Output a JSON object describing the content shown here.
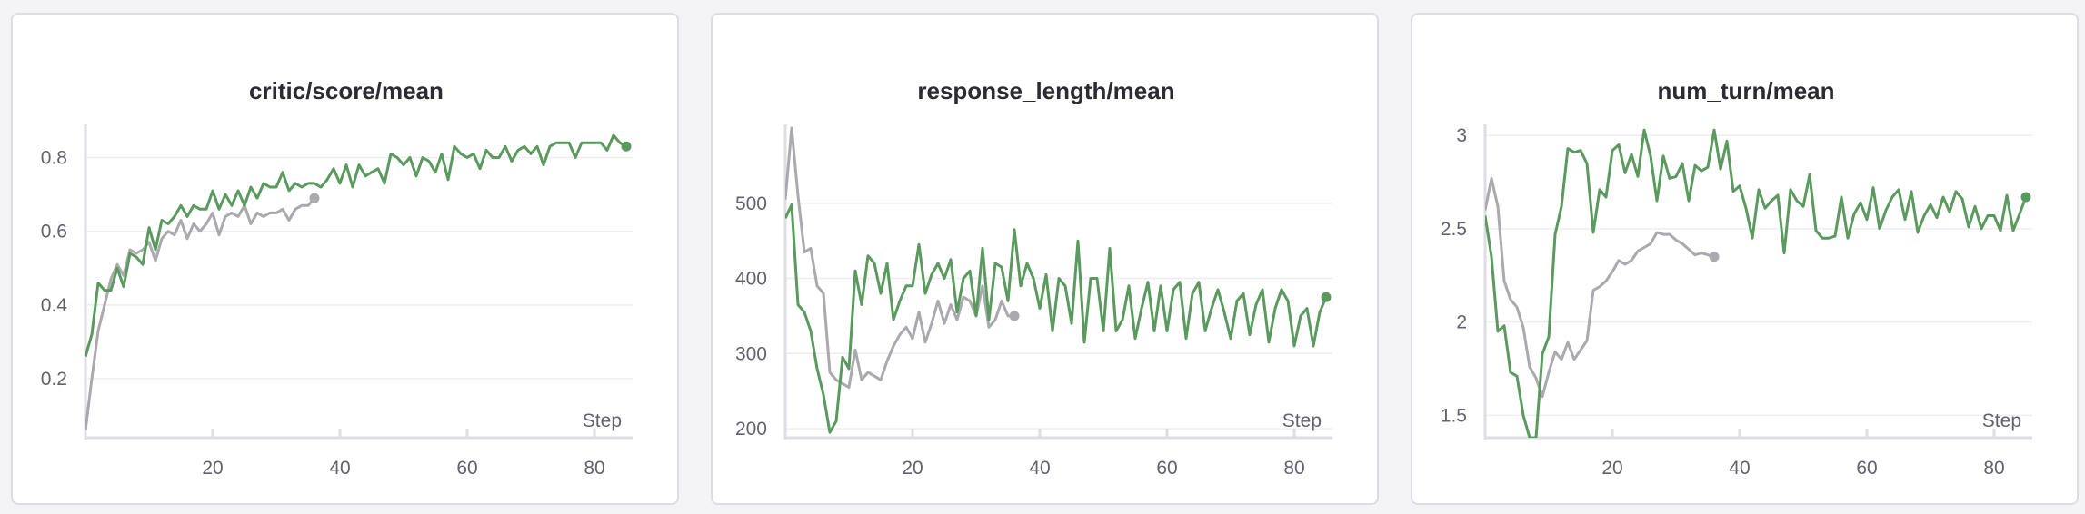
{
  "colors": {
    "run_green": "#5a9a5e",
    "run_gray": "#a9a9ae",
    "grid": "#eeeef2",
    "axis": "#dddde3"
  },
  "chart_data": [
    {
      "type": "line",
      "title": "critic/score/mean",
      "xlabel": "Step",
      "xlim": [
        0,
        86
      ],
      "ylim": [
        0.04,
        0.88
      ],
      "xticks": [
        20,
        40,
        60,
        80
      ],
      "yticks": [
        0.2,
        0.4,
        0.6,
        0.8
      ],
      "ytick_labels": [
        "0.2",
        "0.4",
        "0.6",
        "0.8"
      ],
      "series": [
        {
          "color": "#5a9a5e",
          "end_marker": true,
          "x": [
            0,
            1,
            2,
            3,
            4,
            5,
            6,
            7,
            8,
            9,
            10,
            11,
            12,
            13,
            14,
            15,
            16,
            17,
            18,
            19,
            20,
            21,
            22,
            23,
            24,
            25,
            26,
            27,
            28,
            29,
            30,
            31,
            32,
            33,
            34,
            35,
            36,
            37,
            38,
            39,
            40,
            41,
            42,
            43,
            44,
            45,
            46,
            47,
            48,
            49,
            50,
            51,
            52,
            53,
            54,
            55,
            56,
            57,
            58,
            59,
            60,
            61,
            62,
            63,
            64,
            65,
            66,
            67,
            68,
            69,
            70,
            71,
            72,
            73,
            74,
            75,
            76,
            77,
            78,
            79,
            80,
            81,
            82,
            83,
            84,
            85
          ],
          "y": [
            0.26,
            0.32,
            0.46,
            0.44,
            0.44,
            0.5,
            0.45,
            0.54,
            0.53,
            0.51,
            0.61,
            0.55,
            0.63,
            0.62,
            0.64,
            0.67,
            0.64,
            0.67,
            0.66,
            0.66,
            0.71,
            0.66,
            0.7,
            0.67,
            0.71,
            0.67,
            0.72,
            0.69,
            0.73,
            0.72,
            0.72,
            0.76,
            0.71,
            0.73,
            0.72,
            0.73,
            0.73,
            0.72,
            0.74,
            0.77,
            0.73,
            0.78,
            0.72,
            0.78,
            0.75,
            0.76,
            0.77,
            0.73,
            0.81,
            0.8,
            0.78,
            0.8,
            0.75,
            0.8,
            0.79,
            0.76,
            0.81,
            0.74,
            0.83,
            0.81,
            0.8,
            0.81,
            0.77,
            0.82,
            0.8,
            0.8,
            0.83,
            0.79,
            0.82,
            0.83,
            0.81,
            0.83,
            0.78,
            0.83,
            0.84,
            0.84,
            0.84,
            0.8,
            0.84,
            0.84,
            0.84,
            0.84,
            0.82,
            0.86,
            0.84,
            0.83
          ]
        },
        {
          "color": "#a9a9ae",
          "end_marker": true,
          "x": [
            0,
            1,
            2,
            3,
            4,
            5,
            6,
            7,
            8,
            9,
            10,
            11,
            12,
            13,
            14,
            15,
            16,
            17,
            18,
            19,
            20,
            21,
            22,
            23,
            24,
            25,
            26,
            27,
            28,
            29,
            30,
            31,
            32,
            33,
            34,
            35,
            36
          ],
          "y": [
            0.06,
            0.2,
            0.33,
            0.4,
            0.47,
            0.51,
            0.48,
            0.55,
            0.54,
            0.55,
            0.57,
            0.52,
            0.58,
            0.6,
            0.59,
            0.63,
            0.58,
            0.62,
            0.6,
            0.62,
            0.65,
            0.59,
            0.64,
            0.65,
            0.64,
            0.67,
            0.62,
            0.65,
            0.64,
            0.65,
            0.65,
            0.66,
            0.63,
            0.66,
            0.67,
            0.67,
            0.69
          ]
        }
      ]
    },
    {
      "type": "line",
      "title": "response_length/mean",
      "xlabel": "Step",
      "xlim": [
        0,
        86
      ],
      "ylim": [
        188,
        600
      ],
      "xticks": [
        20,
        40,
        60,
        80
      ],
      "yticks": [
        200,
        300,
        400,
        500
      ],
      "ytick_labels": [
        "200",
        "300",
        "400",
        "500"
      ],
      "series": [
        {
          "color": "#5a9a5e",
          "end_marker": true,
          "x": [
            0,
            1,
            2,
            3,
            4,
            5,
            6,
            7,
            8,
            9,
            10,
            11,
            12,
            13,
            14,
            15,
            16,
            17,
            18,
            19,
            20,
            21,
            22,
            23,
            24,
            25,
            26,
            27,
            28,
            29,
            30,
            31,
            32,
            33,
            34,
            35,
            36,
            37,
            38,
            39,
            40,
            41,
            42,
            43,
            44,
            45,
            46,
            47,
            48,
            49,
            50,
            51,
            52,
            53,
            54,
            55,
            56,
            57,
            58,
            59,
            60,
            61,
            62,
            63,
            64,
            65,
            66,
            67,
            68,
            69,
            70,
            71,
            72,
            73,
            74,
            75,
            76,
            77,
            78,
            79,
            80,
            81,
            82,
            83,
            84,
            85
          ],
          "y": [
            480,
            498,
            365,
            355,
            330,
            280,
            245,
            195,
            210,
            295,
            280,
            410,
            365,
            430,
            420,
            380,
            420,
            345,
            370,
            390,
            390,
            445,
            380,
            405,
            420,
            400,
            425,
            355,
            400,
            410,
            350,
            440,
            345,
            420,
            415,
            370,
            465,
            390,
            420,
            400,
            360,
            405,
            330,
            400,
            390,
            340,
            450,
            315,
            400,
            400,
            330,
            440,
            330,
            345,
            390,
            320,
            360,
            395,
            330,
            390,
            330,
            385,
            395,
            320,
            380,
            395,
            330,
            360,
            385,
            355,
            320,
            370,
            380,
            325,
            365,
            385,
            315,
            360,
            385,
            370,
            310,
            350,
            360,
            310,
            355,
            375
          ]
        },
        {
          "color": "#a9a9ae",
          "end_marker": true,
          "x": [
            0,
            1,
            2,
            3,
            4,
            5,
            6,
            7,
            8,
            9,
            10,
            11,
            12,
            13,
            14,
            15,
            16,
            17,
            18,
            19,
            20,
            21,
            22,
            23,
            24,
            25,
            26,
            27,
            28,
            29,
            30,
            31,
            32,
            33,
            34,
            35,
            36
          ],
          "y": [
            505,
            600,
            510,
            435,
            440,
            390,
            380,
            275,
            265,
            260,
            255,
            305,
            265,
            275,
            270,
            265,
            290,
            310,
            325,
            335,
            320,
            355,
            315,
            340,
            370,
            340,
            365,
            345,
            375,
            370,
            350,
            390,
            335,
            345,
            370,
            350,
            350
          ]
        }
      ]
    },
    {
      "type": "line",
      "title": "num_turn/mean",
      "xlabel": "Step",
      "xlim": [
        0,
        86
      ],
      "ylim": [
        1.38,
        3.04
      ],
      "xticks": [
        20,
        40,
        60,
        80
      ],
      "yticks": [
        1.5,
        2,
        2.5,
        3
      ],
      "ytick_labels": [
        "1.5",
        "2",
        "2.5",
        "3"
      ],
      "series": [
        {
          "color": "#5a9a5e",
          "end_marker": true,
          "x": [
            0,
            1,
            2,
            3,
            4,
            5,
            6,
            7,
            8,
            9,
            10,
            11,
            12,
            13,
            14,
            15,
            16,
            17,
            18,
            19,
            20,
            21,
            22,
            23,
            24,
            25,
            26,
            27,
            28,
            29,
            30,
            31,
            32,
            33,
            34,
            35,
            36,
            37,
            38,
            39,
            40,
            41,
            42,
            43,
            44,
            45,
            46,
            47,
            48,
            49,
            50,
            51,
            52,
            53,
            54,
            55,
            56,
            57,
            58,
            59,
            60,
            61,
            62,
            63,
            64,
            65,
            66,
            67,
            68,
            69,
            70,
            71,
            72,
            73,
            74,
            75,
            76,
            77,
            78,
            79,
            80,
            81,
            82,
            83,
            84,
            85
          ],
          "y": [
            2.57,
            2.35,
            1.95,
            1.98,
            1.73,
            1.71,
            1.5,
            1.38,
            1.38,
            1.83,
            1.92,
            2.47,
            2.62,
            2.93,
            2.91,
            2.92,
            2.85,
            2.48,
            2.71,
            2.67,
            2.92,
            2.95,
            2.8,
            2.9,
            2.78,
            3.03,
            2.89,
            2.65,
            2.89,
            2.77,
            2.78,
            2.85,
            2.65,
            2.84,
            2.81,
            2.83,
            3.03,
            2.82,
            2.97,
            2.7,
            2.73,
            2.61,
            2.45,
            2.71,
            2.61,
            2.65,
            2.68,
            2.37,
            2.71,
            2.65,
            2.62,
            2.79,
            2.49,
            2.45,
            2.45,
            2.46,
            2.67,
            2.45,
            2.58,
            2.64,
            2.55,
            2.72,
            2.5,
            2.6,
            2.67,
            2.71,
            2.55,
            2.7,
            2.48,
            2.57,
            2.63,
            2.56,
            2.67,
            2.59,
            2.7,
            2.66,
            2.51,
            2.62,
            2.5,
            2.57,
            2.57,
            2.49,
            2.68,
            2.49,
            2.58,
            2.67
          ]
        },
        {
          "color": "#a9a9ae",
          "end_marker": true,
          "x": [
            0,
            1,
            2,
            3,
            4,
            5,
            6,
            7,
            8,
            9,
            10,
            11,
            12,
            13,
            14,
            15,
            16,
            17,
            18,
            19,
            20,
            21,
            22,
            23,
            24,
            25,
            26,
            27,
            28,
            29,
            30,
            31,
            32,
            33,
            34,
            35,
            36
          ],
          "y": [
            2.6,
            2.77,
            2.62,
            2.22,
            2.12,
            2.08,
            1.97,
            1.76,
            1.7,
            1.6,
            1.73,
            1.84,
            1.8,
            1.89,
            1.8,
            1.85,
            1.9,
            2.17,
            2.19,
            2.22,
            2.27,
            2.33,
            2.31,
            2.33,
            2.38,
            2.4,
            2.42,
            2.48,
            2.47,
            2.47,
            2.44,
            2.42,
            2.39,
            2.36,
            2.37,
            2.36,
            2.35
          ]
        }
      ]
    }
  ]
}
